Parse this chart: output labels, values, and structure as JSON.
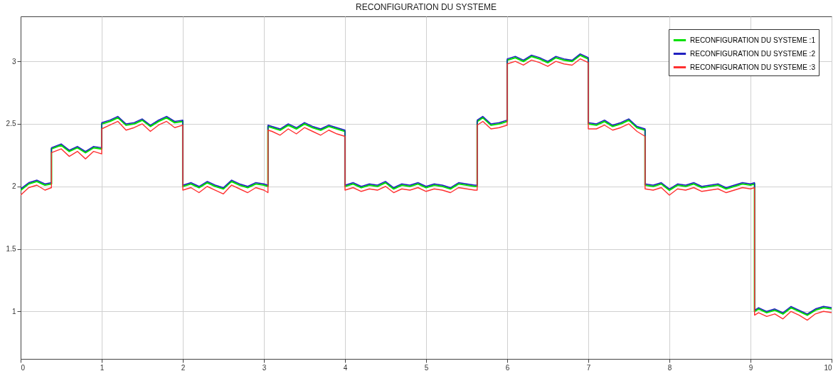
{
  "chart_data": {
    "type": "line",
    "title": "RECONFIGURATION DU SYSTEME",
    "x": [
      0,
      0.1,
      0.2,
      0.3,
      0.38,
      0.38,
      0.5,
      0.6,
      0.7,
      0.8,
      0.9,
      1,
      1,
      1.1,
      1.2,
      1.3,
      1.4,
      1.5,
      1.6,
      1.7,
      1.8,
      1.9,
      2,
      2,
      2.1,
      2.2,
      2.3,
      2.4,
      2.5,
      2.6,
      2.7,
      2.8,
      2.9,
      3,
      3.05,
      3.05,
      3.1,
      3.2,
      3.3,
      3.4,
      3.5,
      3.6,
      3.7,
      3.8,
      3.9,
      4,
      4,
      4.1,
      4.2,
      4.3,
      4.4,
      4.5,
      4.6,
      4.7,
      4.8,
      4.9,
      5,
      5.1,
      5.2,
      5.3,
      5.4,
      5.5,
      5.6,
      5.63,
      5.63,
      5.7,
      5.8,
      5.9,
      6,
      6,
      6.1,
      6.2,
      6.3,
      6.4,
      6.5,
      6.6,
      6.7,
      6.8,
      6.9,
      7,
      7,
      7.1,
      7.2,
      7.3,
      7.4,
      7.5,
      7.6,
      7.7,
      7.7,
      7.8,
      7.9,
      8,
      8.1,
      8.2,
      8.3,
      8.4,
      8.5,
      8.6,
      8.7,
      8.8,
      8.9,
      9,
      9.05,
      9.05,
      9.1,
      9.2,
      9.3,
      9.4,
      9.5,
      9.6,
      9.7,
      9.8,
      9.9,
      10
    ],
    "series": [
      {
        "name": "RECONFIGURATION DU SYSTEME :1",
        "color": "#00e000",
        "values": [
          1.97,
          2.02,
          2.04,
          2.01,
          2.02,
          2.3,
          2.33,
          2.28,
          2.31,
          2.27,
          2.31,
          2.3,
          2.5,
          2.52,
          2.55,
          2.49,
          2.5,
          2.53,
          2.48,
          2.52,
          2.55,
          2.51,
          2.52,
          2.0,
          2.02,
          1.99,
          2.03,
          2.0,
          1.98,
          2.04,
          2.01,
          1.99,
          2.02,
          2.01,
          2.0,
          2.48,
          2.47,
          2.45,
          2.49,
          2.46,
          2.5,
          2.47,
          2.45,
          2.48,
          2.46,
          2.44,
          2.0,
          2.02,
          1.99,
          2.01,
          2.0,
          2.03,
          1.98,
          2.01,
          2.0,
          2.02,
          1.99,
          2.01,
          2.0,
          1.98,
          2.02,
          2.01,
          2.0,
          2.0,
          2.52,
          2.55,
          2.49,
          2.5,
          2.52,
          3.01,
          3.03,
          3.0,
          3.04,
          3.02,
          2.99,
          3.03,
          3.01,
          3.0,
          3.05,
          3.02,
          2.5,
          2.49,
          2.52,
          2.48,
          2.5,
          2.53,
          2.47,
          2.45,
          2.01,
          2.0,
          2.02,
          1.97,
          2.01,
          2.0,
          2.02,
          1.99,
          2.0,
          2.01,
          1.98,
          2.0,
          2.02,
          2.01,
          2.02,
          1.0,
          1.02,
          0.99,
          1.01,
          0.98,
          1.03,
          1.0,
          0.97,
          1.01,
          1.03,
          1.02
        ]
      },
      {
        "name": "RECONFIGURATION DU SYSTEME :2",
        "color": "#2020c0",
        "values": [
          1.98,
          2.03,
          2.05,
          2.02,
          2.03,
          2.31,
          2.34,
          2.29,
          2.32,
          2.28,
          2.32,
          2.31,
          2.51,
          2.53,
          2.56,
          2.5,
          2.51,
          2.54,
          2.49,
          2.53,
          2.56,
          2.52,
          2.53,
          2.01,
          2.03,
          2.0,
          2.04,
          2.01,
          1.99,
          2.05,
          2.02,
          2.0,
          2.03,
          2.02,
          2.01,
          2.49,
          2.48,
          2.46,
          2.5,
          2.47,
          2.51,
          2.48,
          2.46,
          2.49,
          2.47,
          2.45,
          2.01,
          2.03,
          2.0,
          2.02,
          2.01,
          2.04,
          1.99,
          2.02,
          2.01,
          2.03,
          2.0,
          2.02,
          2.01,
          1.99,
          2.03,
          2.02,
          2.01,
          2.01,
          2.53,
          2.56,
          2.5,
          2.51,
          2.53,
          3.02,
          3.04,
          3.01,
          3.05,
          3.03,
          3.0,
          3.04,
          3.02,
          3.01,
          3.06,
          3.03,
          2.51,
          2.5,
          2.53,
          2.49,
          2.51,
          2.54,
          2.48,
          2.46,
          2.02,
          2.01,
          2.03,
          1.98,
          2.02,
          2.01,
          2.03,
          2.0,
          2.01,
          2.02,
          1.99,
          2.01,
          2.03,
          2.02,
          2.03,
          1.01,
          1.03,
          1.0,
          1.02,
          0.99,
          1.04,
          1.01,
          0.98,
          1.02,
          1.04,
          1.03
        ]
      },
      {
        "name": "RECONFIGURATION DU SYSTEME :3",
        "color": "#ff3030",
        "values": [
          1.93,
          1.99,
          2.01,
          1.97,
          1.99,
          2.27,
          2.3,
          2.24,
          2.28,
          2.22,
          2.28,
          2.26,
          2.46,
          2.49,
          2.52,
          2.45,
          2.47,
          2.5,
          2.44,
          2.49,
          2.52,
          2.47,
          2.49,
          1.97,
          1.99,
          1.95,
          2.0,
          1.97,
          1.94,
          2.01,
          1.98,
          1.95,
          1.99,
          1.97,
          1.95,
          2.45,
          2.44,
          2.41,
          2.46,
          2.42,
          2.47,
          2.44,
          2.41,
          2.45,
          2.42,
          2.4,
          1.97,
          1.99,
          1.96,
          1.98,
          1.97,
          2.0,
          1.95,
          1.98,
          1.97,
          1.99,
          1.96,
          1.98,
          1.97,
          1.95,
          1.99,
          1.98,
          1.97,
          1.97,
          2.49,
          2.52,
          2.46,
          2.47,
          2.49,
          2.98,
          3.0,
          2.97,
          3.01,
          2.99,
          2.96,
          3.0,
          2.98,
          2.97,
          3.02,
          2.99,
          2.46,
          2.46,
          2.49,
          2.45,
          2.47,
          2.5,
          2.44,
          2.4,
          1.98,
          1.97,
          1.99,
          1.93,
          1.98,
          1.97,
          1.99,
          1.96,
          1.97,
          1.98,
          1.95,
          1.97,
          1.99,
          1.98,
          1.99,
          0.97,
          0.99,
          0.96,
          0.98,
          0.94,
          1.0,
          0.97,
          0.93,
          0.98,
          1.0,
          0.99
        ]
      }
    ],
    "xlim": [
      0,
      10
    ],
    "xticks": [
      0,
      1,
      2,
      3,
      4,
      5,
      6,
      7,
      8,
      9,
      10
    ],
    "ylim": [
      0.62,
      3.36
    ],
    "yticks": [
      1,
      1.5,
      2,
      2.5,
      3
    ],
    "grid": true,
    "legend": "top right"
  }
}
